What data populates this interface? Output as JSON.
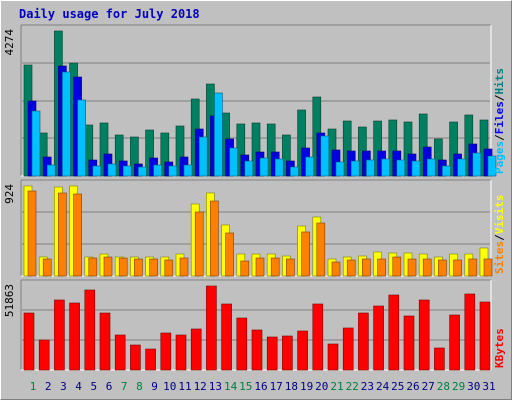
{
  "title": "Daily usage for July 2018",
  "chart_data": [
    {
      "type": "bar",
      "panel": "hits-files-pages",
      "categories": [
        "1",
        "2",
        "3",
        "4",
        "5",
        "6",
        "7",
        "8",
        "9",
        "10",
        "11",
        "12",
        "13",
        "14",
        "15",
        "16",
        "17",
        "18",
        "19",
        "20",
        "21",
        "22",
        "23",
        "24",
        "25",
        "26",
        "27",
        "28",
        "29",
        "30",
        "31"
      ],
      "max_label": "4274",
      "ylim": [
        0,
        4274
      ],
      "legend": [
        {
          "name": "Pages",
          "color": "#00c0ff"
        },
        {
          "name": "/",
          "color": "#000000"
        },
        {
          "name": "Files",
          "color": "#0000ff"
        },
        {
          "name": "/",
          "color": "#000000"
        },
        {
          "name": "Hits",
          "color": "#008080"
        }
      ],
      "series": [
        {
          "name": "Hits",
          "color": "#008060",
          "values": [
            3260,
            1280,
            4274,
            3340,
            1500,
            1570,
            1220,
            1150,
            1370,
            1280,
            1480,
            2270,
            2710,
            1850,
            1520,
            1560,
            1520,
            1210,
            1960,
            2320,
            1400,
            1630,
            1430,
            1620,
            1640,
            1580,
            1820,
            1100,
            1590,
            1800,
            1640
          ]
        },
        {
          "name": "Files",
          "color": "#0000e0",
          "values": [
            2220,
            560,
            3230,
            2920,
            480,
            640,
            440,
            360,
            520,
            400,
            570,
            1380,
            1780,
            1100,
            630,
            720,
            720,
            440,
            820,
            1270,
            780,
            740,
            730,
            750,
            740,
            650,
            860,
            480,
            660,
            950,
            800
          ]
        },
        {
          "name": "Pages",
          "color": "#00c0ff",
          "values": [
            1920,
            320,
            3060,
            2240,
            300,
            340,
            290,
            280,
            320,
            300,
            320,
            1140,
            2460,
            840,
            450,
            520,
            490,
            280,
            550,
            1180,
            410,
            450,
            460,
            490,
            470,
            440,
            510,
            290,
            510,
            670,
            600
          ]
        }
      ]
    },
    {
      "type": "bar",
      "panel": "visits-sites",
      "categories": [
        "1",
        "2",
        "3",
        "4",
        "5",
        "6",
        "7",
        "8",
        "9",
        "10",
        "11",
        "12",
        "13",
        "14",
        "15",
        "16",
        "17",
        "18",
        "19",
        "20",
        "21",
        "22",
        "23",
        "24",
        "25",
        "26",
        "27",
        "28",
        "29",
        "30",
        "31"
      ],
      "max_label": "924",
      "ylim": [
        0,
        924
      ],
      "legend": [
        {
          "name": "Sites",
          "color": "#ff8000"
        },
        {
          "name": "/",
          "color": "#000000"
        },
        {
          "name": "Visits",
          "color": "#ffff00"
        }
      ],
      "series": [
        {
          "name": "Visits",
          "color": "#ffff00",
          "values": [
            924,
            193,
            910,
            922,
            195,
            225,
            193,
            195,
            195,
            193,
            225,
            735,
            852,
            520,
            225,
            225,
            225,
            210,
            510,
            610,
            170,
            200,
            210,
            245,
            240,
            240,
            230,
            190,
            225,
            230,
            285
          ]
        },
        {
          "name": "Sites",
          "color": "#ff8000",
          "values": [
            870,
            175,
            850,
            842,
            180,
            195,
            180,
            170,
            175,
            165,
            180,
            655,
            770,
            440,
            150,
            180,
            180,
            175,
            450,
            545,
            145,
            165,
            175,
            175,
            190,
            175,
            170,
            165,
            165,
            175,
            170
          ]
        }
      ]
    },
    {
      "type": "bar",
      "panel": "kbytes",
      "categories": [
        "1",
        "2",
        "3",
        "4",
        "5",
        "6",
        "7",
        "8",
        "9",
        "10",
        "11",
        "12",
        "13",
        "14",
        "15",
        "16",
        "17",
        "18",
        "19",
        "20",
        "21",
        "22",
        "23",
        "24",
        "25",
        "26",
        "27",
        "28",
        "29",
        "30",
        "31"
      ],
      "max_label": "51863",
      "ylim": [
        0,
        51863
      ],
      "legend": [
        {
          "name": "KBytes",
          "color": "#ff0000"
        }
      ],
      "series": [
        {
          "name": "KBytes",
          "color": "#ff0000",
          "values": [
            35400,
            18600,
            43200,
            41300,
            49200,
            35400,
            21600,
            15300,
            13200,
            22900,
            21800,
            25300,
            51863,
            40700,
            32400,
            24400,
            20100,
            21000,
            24000,
            40600,
            15900,
            26000,
            35300,
            39500,
            46300,
            33100,
            43500,
            13600,
            33800,
            47200,
            41700
          ]
        }
      ]
    }
  ]
}
